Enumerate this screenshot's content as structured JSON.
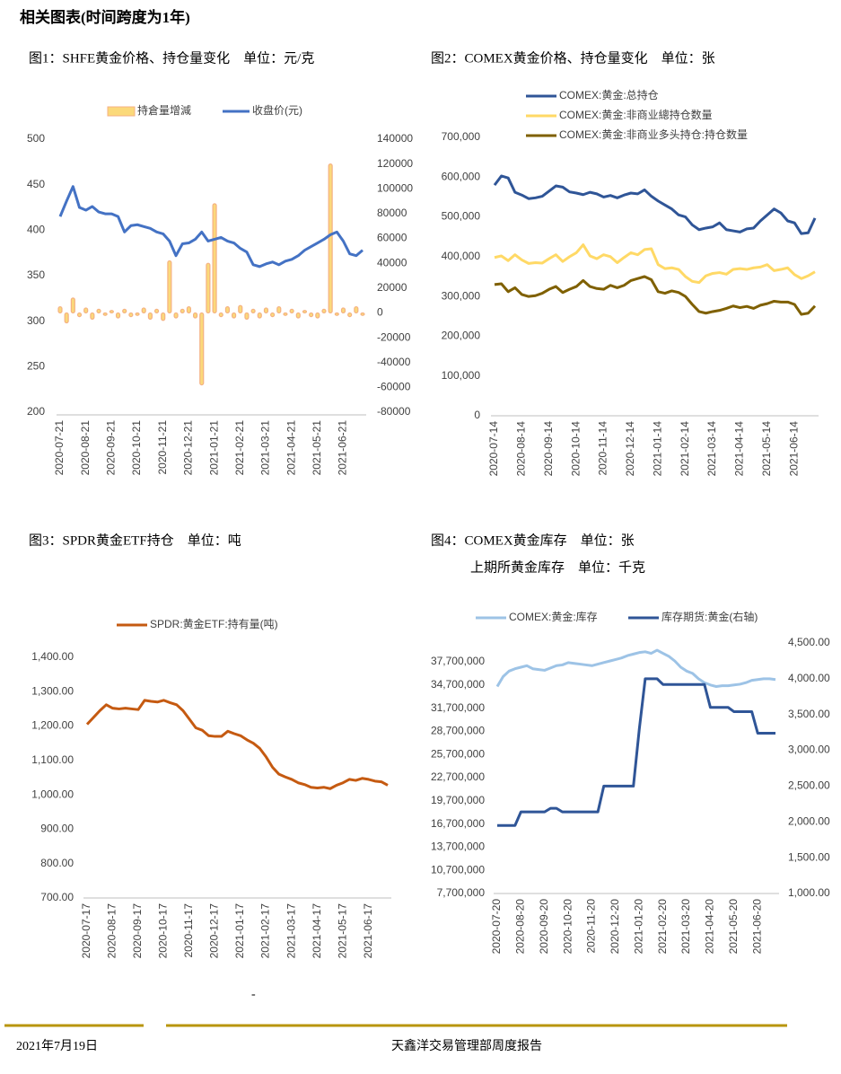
{
  "header": {
    "title": "相关图表(时间跨度为1年)"
  },
  "chart_data": [
    {
      "type": "line",
      "title": "图1：SHFE黄金价格、持仓量变化　单位：元/克",
      "categories": [
        "2020-07-21",
        null,
        null,
        null,
        "2020-08-21",
        null,
        null,
        null,
        "2020-09-21",
        null,
        null,
        null,
        "2020-10-21",
        null,
        null,
        null,
        "2020-11-21",
        null,
        null,
        null,
        "2020-12-21",
        null,
        null,
        null,
        "2021-01-21",
        null,
        null,
        null,
        "2021-02-21",
        null,
        null,
        null,
        "2021-03-21",
        null,
        null,
        null,
        "2021-04-21",
        null,
        null,
        null,
        "2021-05-21",
        null,
        null,
        null,
        "2021-06-21",
        null,
        null,
        null
      ],
      "ylim": [
        200,
        500
      ],
      "yticks": [
        200,
        250,
        300,
        350,
        400,
        450,
        500
      ],
      "y2lim": [
        -80000,
        140000
      ],
      "y2ticks": [
        -80000,
        -60000,
        -40000,
        -20000,
        0,
        20000,
        40000,
        60000,
        80000,
        100000,
        120000,
        140000
      ],
      "grid": false,
      "series": [
        {
          "name": "持倉量增減",
          "type": "bar",
          "axis": "y2",
          "color": "#fbd97a",
          "values": [
            5000,
            -8000,
            12000,
            -3000,
            4000,
            -5000,
            3000,
            -2000,
            2000,
            -4000,
            3000,
            -3000,
            -2000,
            4000,
            -5000,
            3000,
            -6000,
            42000,
            -4000,
            3000,
            5000,
            -4000,
            -58000,
            40000,
            88000,
            -3000,
            5000,
            -4000,
            6000,
            -5000,
            3000,
            -4000,
            4000,
            -3000,
            5000,
            -2000,
            3000,
            -4000,
            2000,
            -3000,
            -4000,
            3000,
            120000,
            -2000,
            4000,
            -3000,
            5000,
            -2000
          ]
        },
        {
          "name": "收盘价(元)",
          "color": "#4472c4",
          "values": [
            415,
            432,
            448,
            425,
            422,
            426,
            420,
            418,
            418,
            415,
            398,
            405,
            406,
            404,
            402,
            398,
            396,
            388,
            372,
            385,
            386,
            390,
            398,
            388,
            390,
            392,
            388,
            386,
            380,
            376,
            362,
            360,
            363,
            365,
            362,
            366,
            368,
            372,
            378,
            382,
            386,
            390,
            395,
            398,
            388,
            374,
            372,
            378
          ]
        }
      ]
    },
    {
      "type": "line",
      "title": "图2：COMEX黄金价格、持仓量变化　单位：张",
      "categories": [
        "2020-07-14",
        null,
        null,
        null,
        "2020-08-14",
        null,
        null,
        null,
        "2020-09-14",
        null,
        null,
        null,
        "2020-10-14",
        null,
        null,
        null,
        "2020-11-14",
        null,
        null,
        null,
        "2020-12-14",
        null,
        null,
        null,
        "2021-01-14",
        null,
        null,
        null,
        "2021-02-14",
        null,
        null,
        null,
        "2021-03-14",
        null,
        null,
        null,
        "2021-04-14",
        null,
        null,
        null,
        "2021-05-14",
        null,
        null,
        null,
        "2021-06-14",
        null,
        null,
        null
      ],
      "ylim": [
        0,
        700000
      ],
      "yticks": [
        0,
        {
          "value": 100000,
          "label": "100,000"
        },
        {
          "value": 200000,
          "label": "200,000"
        },
        {
          "value": 300000,
          "label": "300,000"
        },
        {
          "value": 400000,
          "label": "400,000"
        },
        {
          "value": 500000,
          "label": "500,000"
        },
        {
          "value": 600000,
          "label": "600,000"
        },
        {
          "value": 700000,
          "label": "700,000"
        }
      ],
      "grid": false,
      "series": [
        {
          "name": "COMEX:黄金:总持仓",
          "color": "#2f5597",
          "values": [
            580000,
            603000,
            598000,
            562000,
            555000,
            546000,
            548000,
            552000,
            565000,
            578000,
            575000,
            563000,
            560000,
            556000,
            562000,
            558000,
            550000,
            554000,
            548000,
            555000,
            560000,
            558000,
            568000,
            552000,
            540000,
            530000,
            520000,
            505000,
            500000,
            480000,
            468000,
            472000,
            475000,
            485000,
            468000,
            465000,
            462000,
            470000,
            472000,
            490000,
            505000,
            520000,
            510000,
            490000,
            485000,
            458000,
            460000,
            497000
          ]
        },
        {
          "name": "COMEX:黄金:非商业總持仓数量",
          "color": "#ffd966",
          "values": [
            398000,
            402000,
            390000,
            405000,
            392000,
            383000,
            385000,
            384000,
            395000,
            405000,
            388000,
            400000,
            410000,
            430000,
            402000,
            395000,
            405000,
            400000,
            385000,
            398000,
            410000,
            405000,
            418000,
            420000,
            380000,
            370000,
            372000,
            368000,
            350000,
            338000,
            335000,
            352000,
            358000,
            360000,
            356000,
            368000,
            370000,
            368000,
            372000,
            374000,
            380000,
            365000,
            368000,
            372000,
            355000,
            345000,
            352000,
            362000
          ]
        },
        {
          "name": "COMEX:黄金:非商业多头持仓:持仓数量",
          "color": "#7f6000",
          "values": [
            330000,
            332000,
            312000,
            322000,
            305000,
            300000,
            302000,
            308000,
            318000,
            325000,
            310000,
            318000,
            325000,
            340000,
            325000,
            320000,
            318000,
            328000,
            322000,
            328000,
            340000,
            345000,
            350000,
            342000,
            312000,
            308000,
            314000,
            310000,
            300000,
            280000,
            262000,
            258000,
            262000,
            265000,
            270000,
            276000,
            272000,
            275000,
            270000,
            278000,
            282000,
            288000,
            286000,
            286000,
            280000,
            255000,
            258000,
            276000
          ]
        }
      ]
    },
    {
      "type": "line",
      "title": "图3：SPDR黄金ETF持仓　单位：吨",
      "categories": [
        "2020-07-17",
        null,
        null,
        null,
        "2020-08-17",
        null,
        null,
        null,
        "2020-09-17",
        null,
        null,
        null,
        "2020-10-17",
        null,
        null,
        null,
        "2020-11-17",
        null,
        null,
        null,
        "2020-12-17",
        null,
        null,
        null,
        "2021-01-17",
        null,
        null,
        null,
        "2021-02-17",
        null,
        null,
        null,
        "2021-03-17",
        null,
        null,
        null,
        "2021-04-17",
        null,
        null,
        null,
        "2021-05-17",
        null,
        null,
        null,
        "2021-06-17",
        null,
        null,
        null
      ],
      "ylim": [
        700,
        1400
      ],
      "yticks": [
        {
          "value": 700,
          "label": "700.00"
        },
        {
          "value": 800,
          "label": "800.00"
        },
        {
          "value": 900,
          "label": "900.00"
        },
        {
          "value": 1000,
          "label": "1,000.00"
        },
        {
          "value": 1100,
          "label": "1,100.00"
        },
        {
          "value": 1200,
          "label": "1,200.00"
        },
        {
          "value": 1300,
          "label": "1,300.00"
        },
        {
          "value": 1400,
          "label": "1,400.00"
        }
      ],
      "grid": false,
      "series": [
        {
          "name": "SPDR:黄金ETF:持有量(吨)",
          "color": "#c55a11",
          "values": [
            1205,
            1225,
            1245,
            1262,
            1252,
            1250,
            1252,
            1250,
            1248,
            1275,
            1272,
            1270,
            1275,
            1268,
            1262,
            1245,
            1220,
            1195,
            1188,
            1172,
            1170,
            1170,
            1185,
            1178,
            1172,
            1160,
            1150,
            1135,
            1110,
            1080,
            1060,
            1052,
            1045,
            1035,
            1030,
            1022,
            1020,
            1022,
            1018,
            1028,
            1035,
            1045,
            1042,
            1048,
            1045,
            1040,
            1038,
            1028
          ]
        }
      ]
    },
    {
      "type": "line",
      "title": "图4：COMEX黄金库存　单位：张",
      "subtitle": "上期所黄金库存　单位：千克",
      "categories": [
        "2020-07-20",
        null,
        null,
        null,
        "2020-08-20",
        null,
        null,
        null,
        "2020-09-20",
        null,
        null,
        null,
        "2020-10-20",
        null,
        null,
        null,
        "2020-11-20",
        null,
        null,
        null,
        "2020-12-20",
        null,
        null,
        null,
        "2021-01-20",
        null,
        null,
        null,
        "2021-02-20",
        null,
        null,
        null,
        "2021-03-20",
        null,
        null,
        null,
        "2021-04-20",
        null,
        null,
        null,
        "2021-05-20",
        null,
        null,
        null,
        "2021-06-20",
        null,
        null,
        null
      ],
      "ylim": [
        7700000,
        40140000
      ],
      "yticks": [
        {
          "value": 7700000,
          "label": "7,700,000"
        },
        {
          "value": 10700000,
          "label": "10,700,000"
        },
        {
          "value": 13700000,
          "label": "13,700,000"
        },
        {
          "value": 16700000,
          "label": "16,700,000"
        },
        {
          "value": 19700000,
          "label": "19,700,000"
        },
        {
          "value": 22700000,
          "label": "22,700,000"
        },
        {
          "value": 25700000,
          "label": "25,700,000"
        },
        {
          "value": 28700000,
          "label": "28,700,000"
        },
        {
          "value": 31700000,
          "label": "31,700,000"
        },
        {
          "value": 34700000,
          "label": "34,700,000"
        },
        {
          "value": 37700000,
          "label": "37,700,000"
        }
      ],
      "y2lim": [
        1000,
        4500
      ],
      "y2ticks": [
        {
          "value": 1000,
          "label": "1,000.00"
        },
        {
          "value": 1500,
          "label": "1,500.00"
        },
        {
          "value": 2000,
          "label": "2,000.00"
        },
        {
          "value": 2500,
          "label": "2,500.00"
        },
        {
          "value": 3000,
          "label": "3,000.00"
        },
        {
          "value": 3500,
          "label": "3,500.00"
        },
        {
          "value": 4000,
          "label": "4,000.00"
        },
        {
          "value": 4500,
          "label": "4,500.00"
        }
      ],
      "grid": false,
      "series": [
        {
          "name": "COMEX:黄金:库存",
          "color": "#9dc3e6",
          "values": [
            34500000,
            35800000,
            36500000,
            36800000,
            37000000,
            37200000,
            36800000,
            36700000,
            36600000,
            36900000,
            37200000,
            37300000,
            37600000,
            37500000,
            37400000,
            37300000,
            37200000,
            37400000,
            37600000,
            37800000,
            38000000,
            38200000,
            38500000,
            38700000,
            38900000,
            39000000,
            38800000,
            39200000,
            38800000,
            38400000,
            37800000,
            37000000,
            36500000,
            36200000,
            35500000,
            35000000,
            34700000,
            34500000,
            34600000,
            34600000,
            34700000,
            34800000,
            35000000,
            35300000,
            35400000,
            35500000,
            35500000,
            35400000
          ]
        },
        {
          "name": "库存期货:黄金(右轴)",
          "color": "#2f5597",
          "axis": "y2",
          "values": [
            1950,
            1950,
            1950,
            1950,
            2140,
            2140,
            2140,
            2140,
            2140,
            2190,
            2190,
            2140,
            2140,
            2140,
            2140,
            2140,
            2140,
            2140,
            2500,
            2500,
            2500,
            2500,
            2500,
            2500,
            3300,
            4000,
            4000,
            4000,
            3920,
            3920,
            3920,
            3920,
            3920,
            3920,
            3920,
            3920,
            3600,
            3600,
            3600,
            3600,
            3540,
            3540,
            3540,
            3540,
            3240,
            3240,
            3240,
            3240
          ]
        }
      ]
    }
  ],
  "footer": {
    "mark": "-",
    "date": "2021年7月19日",
    "report": "天鑫洋交易管理部周度报告"
  }
}
